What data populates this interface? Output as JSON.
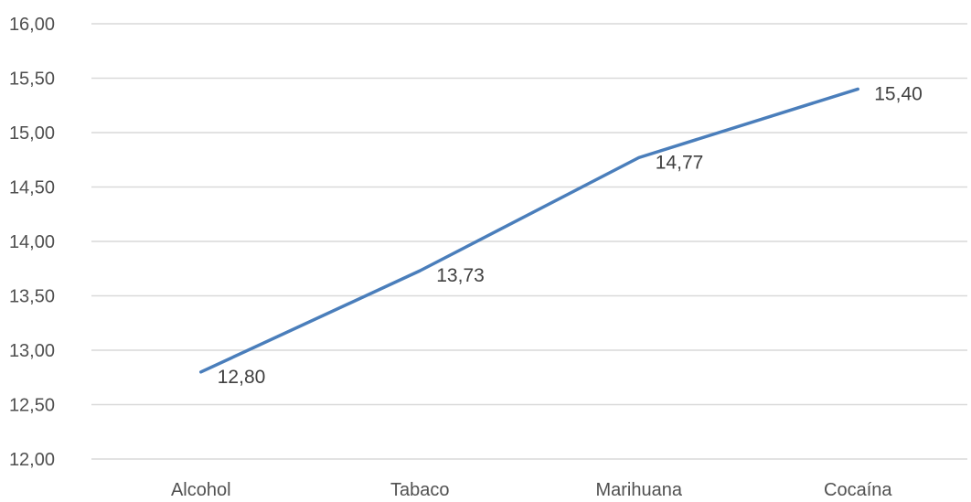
{
  "chart_data": {
    "type": "line",
    "categories": [
      "Alcohol",
      "Tabaco",
      "Marihuana",
      "Cocaína"
    ],
    "series": [
      {
        "values": [
          12.8,
          13.73,
          14.77,
          15.4
        ]
      }
    ],
    "data_labels": [
      "12,80",
      "13,73",
      "14,77",
      "15,40"
    ],
    "ylim": [
      12.0,
      16.0
    ],
    "y_ticks": [
      "12,00",
      "12,50",
      "13,00",
      "13,50",
      "14,00",
      "14,50",
      "15,00",
      "15,50",
      "16,00"
    ],
    "grid": true,
    "line_color": "#4a7ebb",
    "grid_color": "#d9d9d9",
    "title": "",
    "xlabel": "",
    "ylabel": ""
  }
}
